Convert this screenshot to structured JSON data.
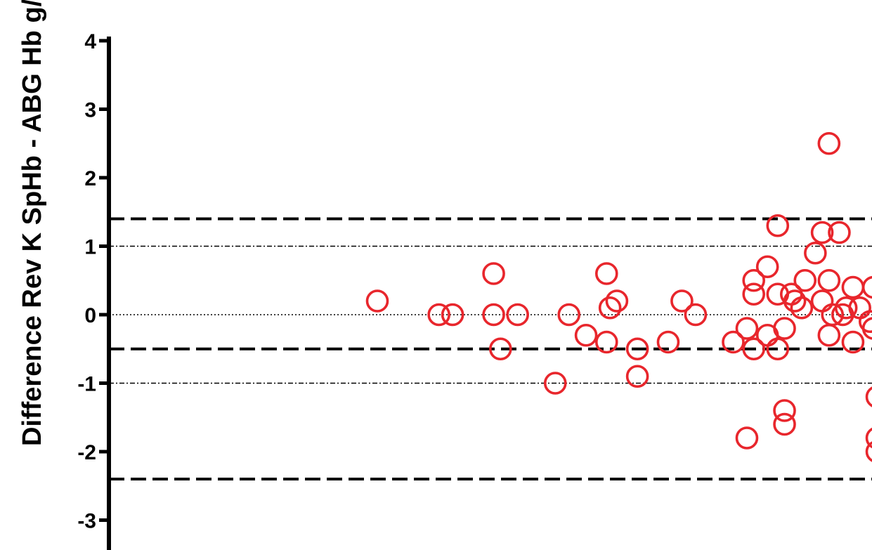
{
  "chart_data": {
    "type": "scatter",
    "title": "",
    "ylabel": "Difference Rev K SpHb - ABG Hb g/dl",
    "xlabel": "",
    "ylim": [
      -3.3,
      4
    ],
    "yticks": [
      4,
      3,
      2,
      1,
      0,
      -1,
      -2,
      -3
    ],
    "ytick_labels": [
      "4",
      "3",
      "2",
      "1",
      "0",
      "-1",
      "-2",
      "-3"
    ],
    "reference_lines": [
      {
        "name": "upper limit of agreement",
        "y": 1.4,
        "style": "dashed"
      },
      {
        "name": "mean bias",
        "y": -0.5,
        "style": "dashed"
      },
      {
        "name": "lower limit of agreement",
        "y": -2.4,
        "style": "dashed"
      },
      {
        "name": "+1",
        "y": 1,
        "style": "dash-dot"
      },
      {
        "name": "zero",
        "y": 0,
        "style": "dotted"
      },
      {
        "name": "-1",
        "y": -1,
        "style": "dash-dot"
      }
    ],
    "marker": {
      "shape": "open-circle",
      "color": "#e8262c"
    },
    "points": [
      {
        "x": 9.1,
        "y": 0.2
      },
      {
        "x": 10.0,
        "y": 0.0
      },
      {
        "x": 10.2,
        "y": 0.0
      },
      {
        "x": 10.8,
        "y": 0.6
      },
      {
        "x": 10.8,
        "y": 0.0
      },
      {
        "x": 10.9,
        "y": -0.5
      },
      {
        "x": 11.15,
        "y": 0.0
      },
      {
        "x": 11.7,
        "y": -1.0
      },
      {
        "x": 11.9,
        "y": 0.0
      },
      {
        "x": 12.15,
        "y": -0.3
      },
      {
        "x": 12.45,
        "y": 0.6
      },
      {
        "x": 12.45,
        "y": -0.4
      },
      {
        "x": 12.5,
        "y": 0.1
      },
      {
        "x": 12.6,
        "y": 0.2
      },
      {
        "x": 12.9,
        "y": -0.5
      },
      {
        "x": 12.9,
        "y": -0.9
      },
      {
        "x": 13.35,
        "y": -0.4
      },
      {
        "x": 13.55,
        "y": 0.2
      },
      {
        "x": 13.75,
        "y": 0.0
      },
      {
        "x": 14.3,
        "y": -0.4
      },
      {
        "x": 14.5,
        "y": -0.2
      },
      {
        "x": 14.5,
        "y": -1.8
      },
      {
        "x": 14.6,
        "y": 0.5
      },
      {
        "x": 14.6,
        "y": 0.3
      },
      {
        "x": 14.6,
        "y": -0.5
      },
      {
        "x": 14.8,
        "y": 0.7
      },
      {
        "x": 14.8,
        "y": -0.3
      },
      {
        "x": 14.95,
        "y": 1.3
      },
      {
        "x": 14.95,
        "y": 0.3
      },
      {
        "x": 14.95,
        "y": -0.5
      },
      {
        "x": 15.05,
        "y": -0.2
      },
      {
        "x": 15.05,
        "y": -1.4
      },
      {
        "x": 15.05,
        "y": -1.6
      },
      {
        "x": 15.15,
        "y": 0.3
      },
      {
        "x": 15.2,
        "y": 0.2
      },
      {
        "x": 15.3,
        "y": 0.1
      },
      {
        "x": 15.35,
        "y": 0.5
      },
      {
        "x": 15.5,
        "y": 0.9
      },
      {
        "x": 15.6,
        "y": 1.2
      },
      {
        "x": 15.6,
        "y": 0.2
      },
      {
        "x": 15.7,
        "y": 2.5
      },
      {
        "x": 15.7,
        "y": 0.5
      },
      {
        "x": 15.7,
        "y": -0.3
      },
      {
        "x": 15.75,
        "y": 0.0
      },
      {
        "x": 15.85,
        "y": 1.2
      },
      {
        "x": 15.9,
        "y": 0.0
      },
      {
        "x": 15.95,
        "y": 0.1
      },
      {
        "x": 16.05,
        "y": 0.4
      },
      {
        "x": 16.05,
        "y": -0.4
      },
      {
        "x": 16.15,
        "y": 0.1
      },
      {
        "x": 16.3,
        "y": -0.1
      },
      {
        "x": 16.35,
        "y": 0.4
      },
      {
        "x": 16.35,
        "y": -0.2
      },
      {
        "x": 16.4,
        "y": -1.2
      },
      {
        "x": 16.4,
        "y": -1.8
      },
      {
        "x": 16.4,
        "y": -2.0
      }
    ]
  },
  "colors": {
    "marker": "#e8262c",
    "axis": "#000000",
    "background": "#ffffff"
  }
}
